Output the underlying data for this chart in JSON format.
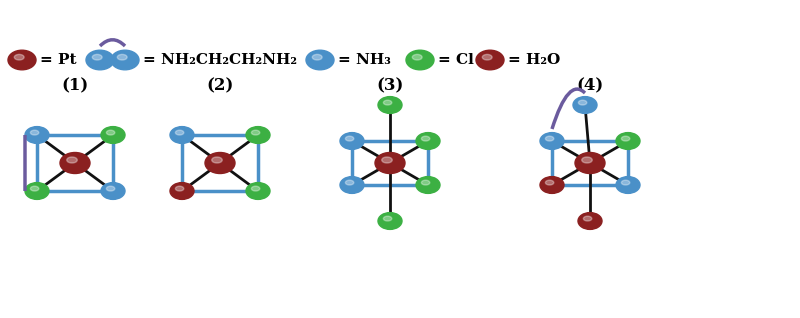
{
  "background": "#ffffff",
  "pt_color": "#8B2020",
  "en_color": "#4A90C8",
  "nh3_color": "#4A90C8",
  "cl_color": "#3CB043",
  "h2o_color": "#8B2020",
  "arc_color": "#6B5B9E",
  "bond_color_black": "#111111",
  "bond_color_blue": "#4A90C8",
  "legend_items": [
    {
      "symbol": "Pt",
      "color": "#8B2020",
      "type": "circle"
    },
    {
      "label": "= NH₂CH₂CH₂NH₂",
      "color": "#4A90C8",
      "type": "bidentate"
    },
    {
      "label": "= NH₃",
      "color": "#4A90C8",
      "type": "circle"
    },
    {
      "label": "= Cl",
      "color": "#3CB043",
      "type": "circle"
    },
    {
      "label": "= H₂O",
      "color": "#8B2020",
      "type": "circle"
    }
  ],
  "labels": [
    "(1)",
    "(2)",
    "(3)",
    "(4)"
  ]
}
